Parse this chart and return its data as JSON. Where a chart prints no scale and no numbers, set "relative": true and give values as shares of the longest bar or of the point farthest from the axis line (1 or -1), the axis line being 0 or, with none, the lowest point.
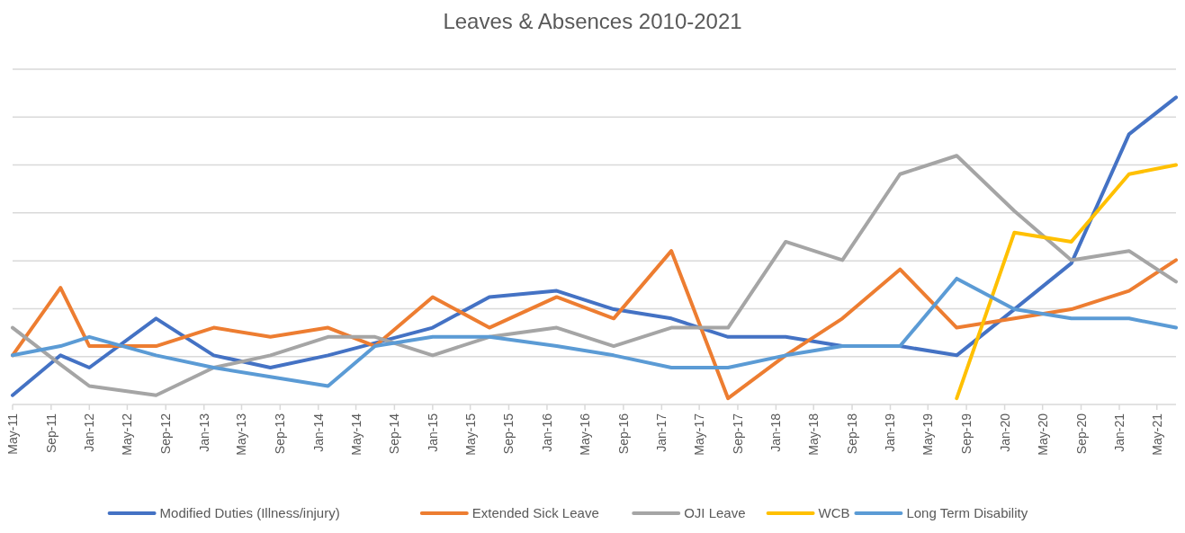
{
  "chart_data": {
    "type": "line",
    "title": "Leaves & Absences 2010-2021",
    "relative": true,
    "grid": "y",
    "legend": "bottom",
    "line_style": "solid",
    "marker": "none",
    "x": [
      "2011-05",
      "2011-10",
      "2012-01",
      "2012-08",
      "2013-02",
      "2013-08",
      "2014-02",
      "2014-07",
      "2015-01",
      "2015-07",
      "2016-02",
      "2016-08",
      "2017-02",
      "2017-08",
      "2018-02",
      "2018-08",
      "2019-02",
      "2019-08",
      "2020-02",
      "2020-08",
      "2021-02",
      "2021-07"
    ],
    "xlim": [
      "2011-05",
      "2021-07"
    ],
    "xticks": [
      {
        "value": "2011-05",
        "label": "May-11"
      },
      {
        "value": "2011-09",
        "label": "Sep-11"
      },
      {
        "value": "2012-01",
        "label": "Jan-12"
      },
      {
        "value": "2012-05",
        "label": "May-12"
      },
      {
        "value": "2012-09",
        "label": "Sep-12"
      },
      {
        "value": "2013-01",
        "label": "Jan-13"
      },
      {
        "value": "2013-05",
        "label": "May-13"
      },
      {
        "value": "2013-09",
        "label": "Sep-13"
      },
      {
        "value": "2014-01",
        "label": "Jan-14"
      },
      {
        "value": "2014-05",
        "label": "May-14"
      },
      {
        "value": "2014-09",
        "label": "Sep-14"
      },
      {
        "value": "2015-01",
        "label": "Jan-15"
      },
      {
        "value": "2015-05",
        "label": "May-15"
      },
      {
        "value": "2015-09",
        "label": "Sep-15"
      },
      {
        "value": "2016-01",
        "label": "Jan-16"
      },
      {
        "value": "2016-05",
        "label": "May-16"
      },
      {
        "value": "2016-09",
        "label": "Sep-16"
      },
      {
        "value": "2017-01",
        "label": "Jan-17"
      },
      {
        "value": "2017-05",
        "label": "May-17"
      },
      {
        "value": "2017-09",
        "label": "Sep-17"
      },
      {
        "value": "2018-01",
        "label": "Jan-18"
      },
      {
        "value": "2018-05",
        "label": "May-18"
      },
      {
        "value": "2018-09",
        "label": "Sep-18"
      },
      {
        "value": "2019-01",
        "label": "Jan-19"
      },
      {
        "value": "2019-05",
        "label": "May-19"
      },
      {
        "value": "2019-09",
        "label": "Sep-19"
      },
      {
        "value": "2020-01",
        "label": "Jan-20"
      },
      {
        "value": "2020-05",
        "label": "May-20"
      },
      {
        "value": "2020-09",
        "label": "Sep-20"
      },
      {
        "value": "2021-01",
        "label": "Jan-21"
      },
      {
        "value": "2021-05",
        "label": "May-21"
      }
    ],
    "series": [
      {
        "name": "Modified Duties (Illness/injury)",
        "color": "#4472c4",
        "values": [
          0.03,
          0.16,
          0.12,
          0.28,
          0.16,
          0.12,
          0.16,
          0.2,
          0.25,
          0.35,
          0.37,
          0.31,
          0.28,
          0.22,
          0.22,
          0.19,
          0.19,
          0.16,
          0.31,
          0.46,
          0.88,
          1
        ]
      },
      {
        "name": "Extended Sick Leave",
        "color": "#ed7d31",
        "values": [
          0.16,
          0.38,
          0.19,
          0.19,
          0.25,
          0.22,
          0.25,
          0.19,
          0.35,
          0.25,
          0.35,
          0.28,
          0.5,
          0.02,
          0.16,
          0.28,
          0.44,
          0.25,
          0.28,
          0.31,
          0.37,
          0.47
        ]
      },
      {
        "name": "OJI Leave",
        "color": "#a5a5a5",
        "values": [
          0.25,
          0.13,
          0.06,
          0.03,
          0.12,
          0.16,
          0.22,
          0.22,
          0.16,
          0.22,
          0.25,
          0.19,
          0.25,
          0.25,
          0.53,
          0.47,
          0.75,
          0.81,
          0.63,
          0.47,
          0.5,
          0.4
        ]
      },
      {
        "name": "WCB",
        "color": "#ffc000",
        "values": [
          null,
          null,
          null,
          null,
          null,
          null,
          null,
          null,
          null,
          null,
          null,
          null,
          null,
          null,
          null,
          null,
          null,
          0.02,
          0.56,
          0.53,
          0.75,
          0.78
        ]
      },
      {
        "name": "Long Term Disability",
        "color": "#5b9bd5",
        "values": [
          0.16,
          0.19,
          0.22,
          0.16,
          0.12,
          0.09,
          0.06,
          0.19,
          0.22,
          0.22,
          0.19,
          0.16,
          0.12,
          0.12,
          0.16,
          0.19,
          0.19,
          0.41,
          0.31,
          0.28,
          0.28,
          0.25
        ]
      }
    ]
  }
}
